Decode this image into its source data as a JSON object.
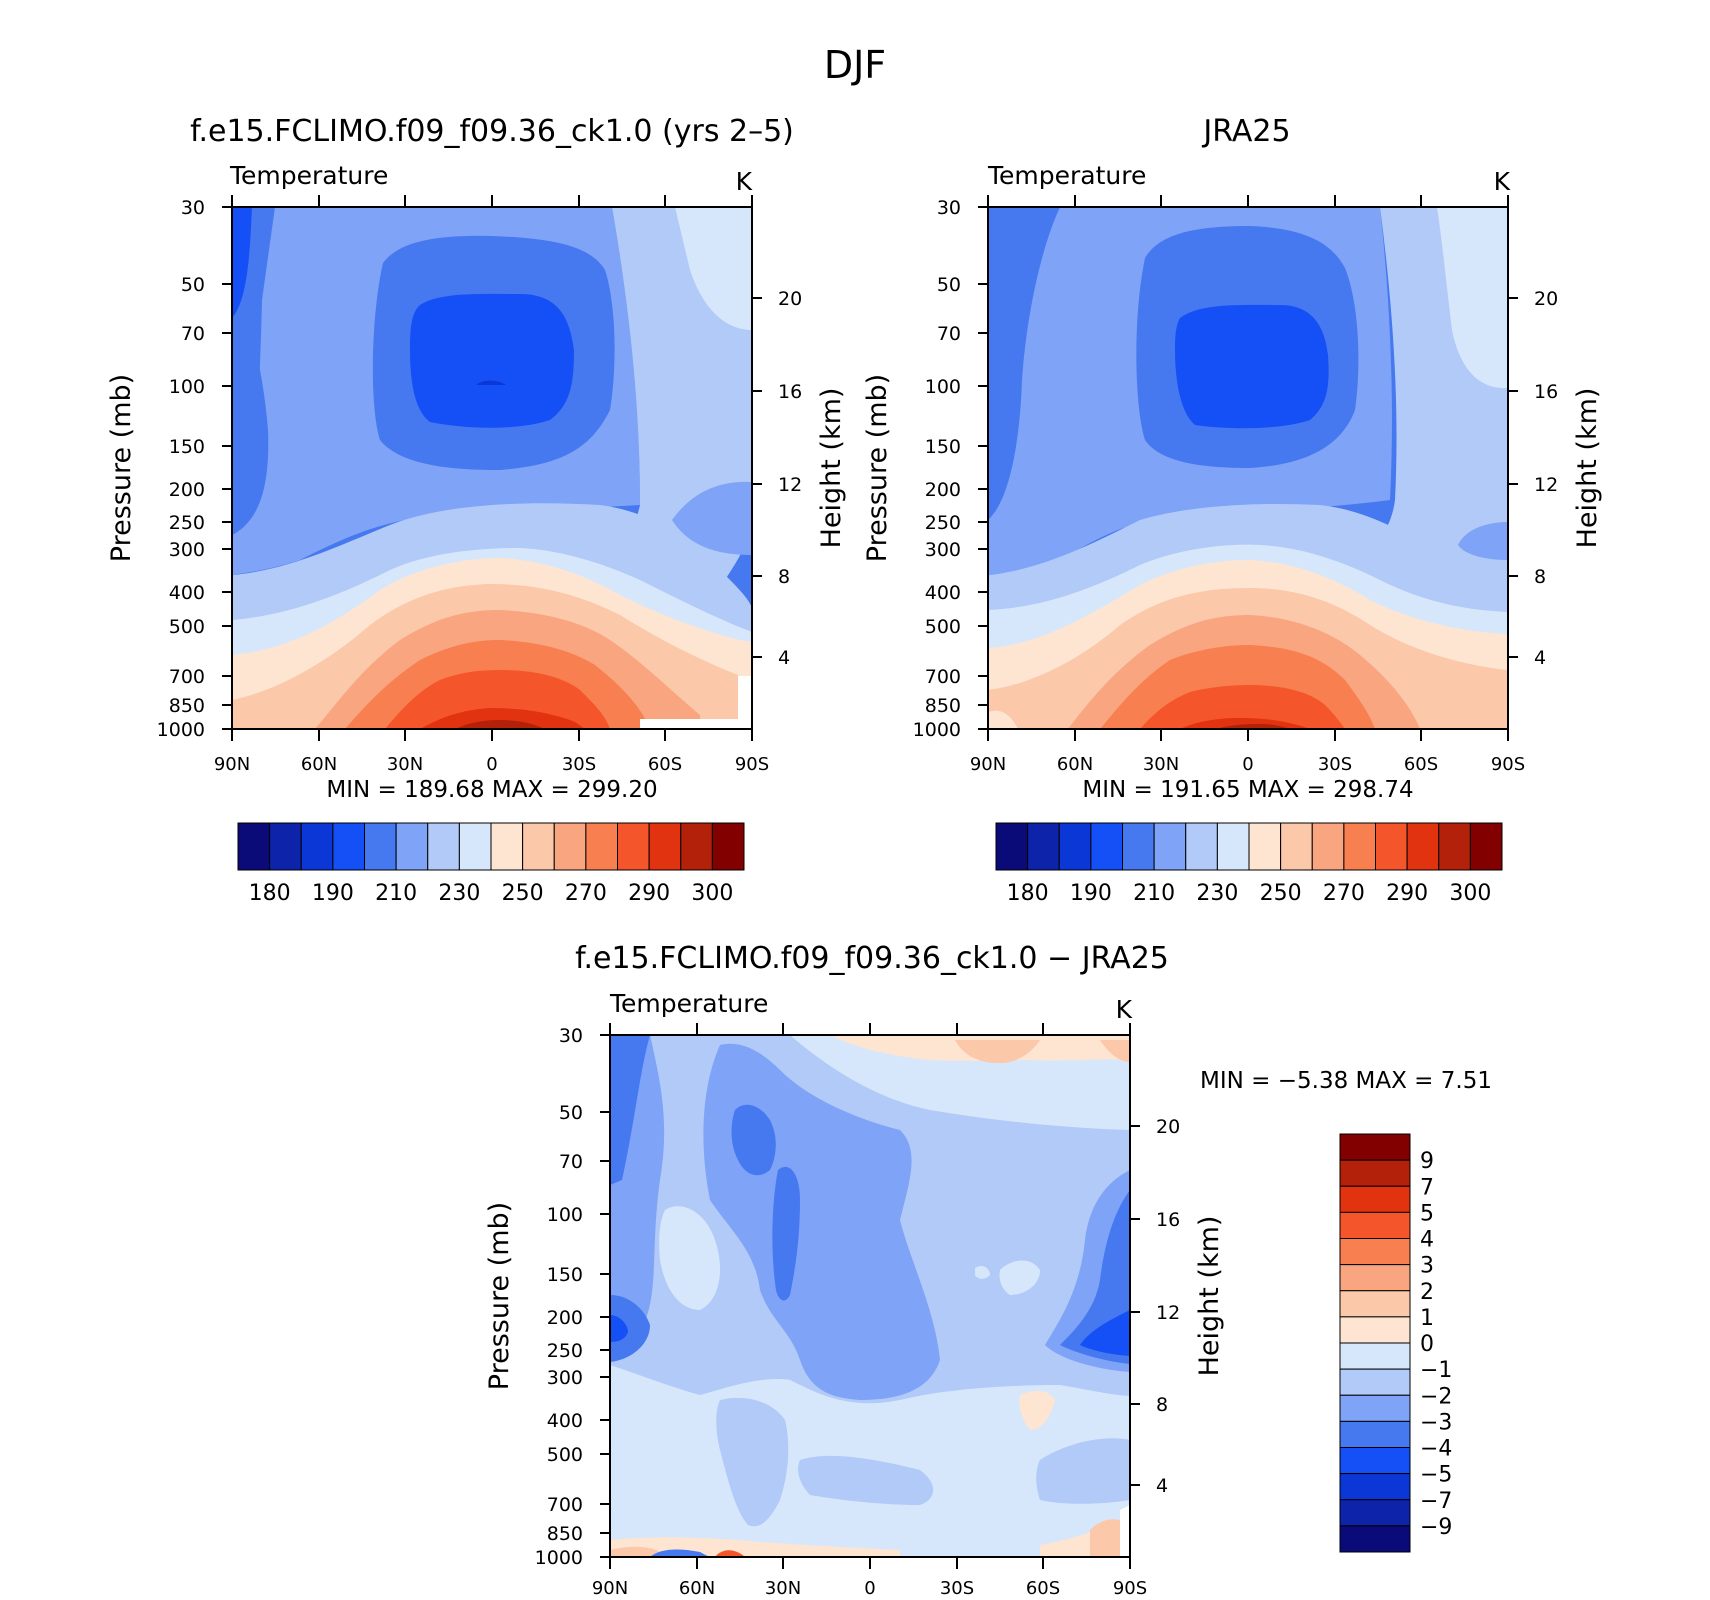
{
  "figure_title": "DJF",
  "chart_data": [
    {
      "type": "contour",
      "title": "f.e15.FCLIMO.f09_f09.36_ck1.0 (yrs 2–5)",
      "variable": "Temperature",
      "units": "K",
      "ylabel": "Pressure (mb)",
      "y2label": "Height (km)",
      "stats": "MIN = 189.68   MAX = 299.20",
      "min": 189.68,
      "max": 299.2
    },
    {
      "type": "contour",
      "title": "JRA25",
      "variable": "Temperature",
      "units": "K",
      "ylabel": "Pressure (mb)",
      "y2label": "Height (km)",
      "stats": "MIN = 191.65   MAX = 298.74",
      "min": 191.65,
      "max": 298.74
    },
    {
      "type": "contour",
      "title": "f.e15.FCLIMO.f09_f09.36_ck1.0 − JRA25",
      "variable": "Temperature",
      "units": "K",
      "ylabel": "Pressure (mb)",
      "y2label": "Height (km)",
      "stats": "MIN =    −5.38   MAX =     7.51",
      "min": -5.38,
      "max": 7.51
    }
  ],
  "axes": {
    "pressure_ticks": [
      "30",
      "50",
      "70",
      "100",
      "150",
      "200",
      "250",
      "300",
      "400",
      "500",
      "700",
      "850",
      "1000"
    ],
    "height_ticks": [
      "20",
      "16",
      "12",
      "8",
      "4"
    ],
    "lat_ticks": [
      "90N",
      "60N",
      "30N",
      "0",
      "30S",
      "60S",
      "90S"
    ]
  },
  "colorbar_abs": {
    "colors": [
      "#0a0a78",
      "#0c23aa",
      "#0a37d6",
      "#1450f5",
      "#4678f0",
      "#7ea3f7",
      "#b2caf8",
      "#d7e7fb",
      "#fde5d2",
      "#fbc8aa",
      "#f9a57f",
      "#f77f50",
      "#f5552a",
      "#e1330f",
      "#b4210a",
      "#820000"
    ],
    "labels": [
      "180",
      "190",
      "210",
      "230",
      "250",
      "270",
      "290",
      "300"
    ]
  },
  "colorbar_diff": {
    "colors": [
      "#0a0a78",
      "#0c23aa",
      "#0a37d6",
      "#1450f5",
      "#4678f0",
      "#7ea3f7",
      "#b2caf8",
      "#d7e7fb",
      "#fde5d2",
      "#fbc8aa",
      "#f9a57f",
      "#f77f50",
      "#f5552a",
      "#e1330f",
      "#b4210a",
      "#820000"
    ],
    "labels": [
      "9",
      "7",
      "5",
      "4",
      "3",
      "2",
      "1",
      "0",
      "−1",
      "−2",
      "−3",
      "−4",
      "−5",
      "−7",
      "−9"
    ]
  }
}
